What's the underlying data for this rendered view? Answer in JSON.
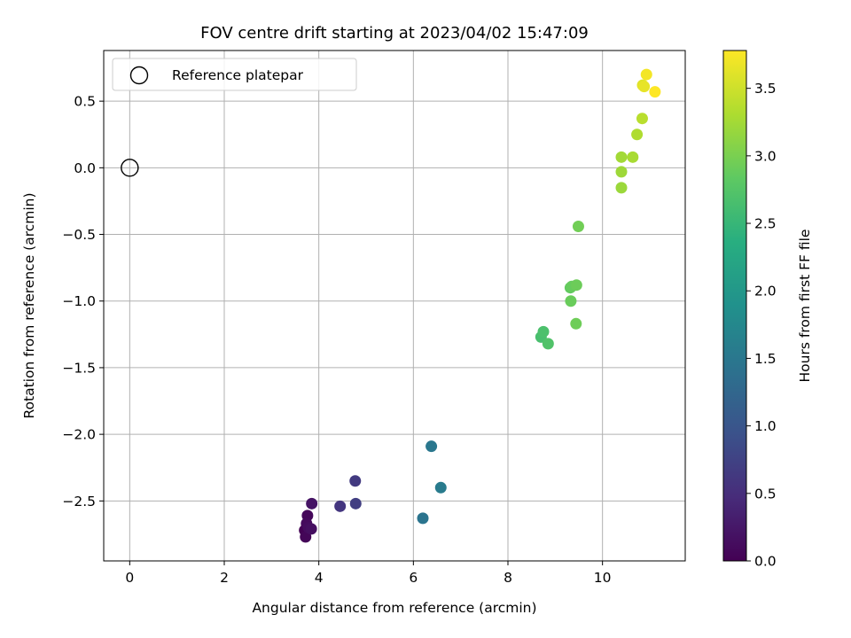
{
  "chart_data": {
    "type": "scatter",
    "title": "FOV centre drift starting at 2023/04/02 15:47:09",
    "xlabel": "Angular distance from reference (arcmin)",
    "ylabel": "Rotation from reference (arcmin)",
    "xlim": [
      -0.55,
      11.75
    ],
    "ylim": [
      -2.95,
      0.88
    ],
    "xticks": [
      0,
      2,
      4,
      6,
      8,
      10
    ],
    "xtick_labels": [
      "0",
      "2",
      "4",
      "6",
      "8",
      "10"
    ],
    "yticks": [
      0.5,
      0.0,
      -0.5,
      -1.0,
      -1.5,
      -2.0,
      -2.5
    ],
    "ytick_labels": [
      "0.5",
      "0.0",
      "−0.5",
      "−1.0",
      "−1.5",
      "−2.0",
      "−2.5"
    ],
    "grid": true,
    "legend": {
      "placement": "top-left",
      "entries": [
        "Reference platepar"
      ]
    },
    "reference_point": {
      "x": 0.0,
      "y": 0.0
    },
    "colorbar": {
      "label": "Hours from first FF file",
      "colormap": "viridis",
      "range": [
        0.0,
        3.78
      ],
      "ticks": [
        0.0,
        0.5,
        1.0,
        1.5,
        2.0,
        2.5,
        3.0,
        3.5
      ],
      "tick_labels": [
        "0.0",
        "0.5",
        "1.0",
        "1.5",
        "2.0",
        "2.5",
        "3.0",
        "3.5"
      ]
    },
    "points": [
      {
        "x": 3.7,
        "y": -2.72,
        "hours": 0.0
      },
      {
        "x": 3.72,
        "y": -2.77,
        "hours": 0.05
      },
      {
        "x": 3.76,
        "y": -2.61,
        "hours": 0.08
      },
      {
        "x": 3.74,
        "y": -2.67,
        "hours": 0.1
      },
      {
        "x": 3.78,
        "y": -2.7,
        "hours": 0.12
      },
      {
        "x": 3.84,
        "y": -2.71,
        "hours": 0.15
      },
      {
        "x": 3.85,
        "y": -2.52,
        "hours": 0.2
      },
      {
        "x": 4.45,
        "y": -2.54,
        "hours": 0.6
      },
      {
        "x": 4.77,
        "y": -2.35,
        "hours": 0.65
      },
      {
        "x": 4.78,
        "y": -2.52,
        "hours": 0.7
      },
      {
        "x": 6.2,
        "y": -2.63,
        "hours": 1.45
      },
      {
        "x": 6.38,
        "y": -2.09,
        "hours": 1.5
      },
      {
        "x": 6.58,
        "y": -2.4,
        "hours": 1.55
      },
      {
        "x": 8.7,
        "y": -1.27,
        "hours": 2.65
      },
      {
        "x": 8.75,
        "y": -1.23,
        "hours": 2.68
      },
      {
        "x": 8.85,
        "y": -1.32,
        "hours": 2.72
      },
      {
        "x": 9.32,
        "y": -0.9,
        "hours": 2.85
      },
      {
        "x": 9.35,
        "y": -0.89,
        "hours": 2.88
      },
      {
        "x": 9.33,
        "y": -1.0,
        "hours": 2.9
      },
      {
        "x": 9.45,
        "y": -0.88,
        "hours": 2.92
      },
      {
        "x": 9.44,
        "y": -1.17,
        "hours": 2.93
      },
      {
        "x": 9.49,
        "y": -0.44,
        "hours": 2.95
      },
      {
        "x": 10.4,
        "y": -0.15,
        "hours": 3.2
      },
      {
        "x": 10.4,
        "y": -0.03,
        "hours": 3.22
      },
      {
        "x": 10.4,
        "y": 0.08,
        "hours": 3.24
      },
      {
        "x": 10.64,
        "y": 0.08,
        "hours": 3.28
      },
      {
        "x": 10.73,
        "y": 0.25,
        "hours": 3.32
      },
      {
        "x": 10.84,
        "y": 0.37,
        "hours": 3.38
      },
      {
        "x": 10.85,
        "y": 0.62,
        "hours": 3.6
      },
      {
        "x": 10.88,
        "y": 0.61,
        "hours": 3.65
      },
      {
        "x": 10.93,
        "y": 0.7,
        "hours": 3.72
      },
      {
        "x": 11.11,
        "y": 0.57,
        "hours": 3.78
      }
    ]
  }
}
